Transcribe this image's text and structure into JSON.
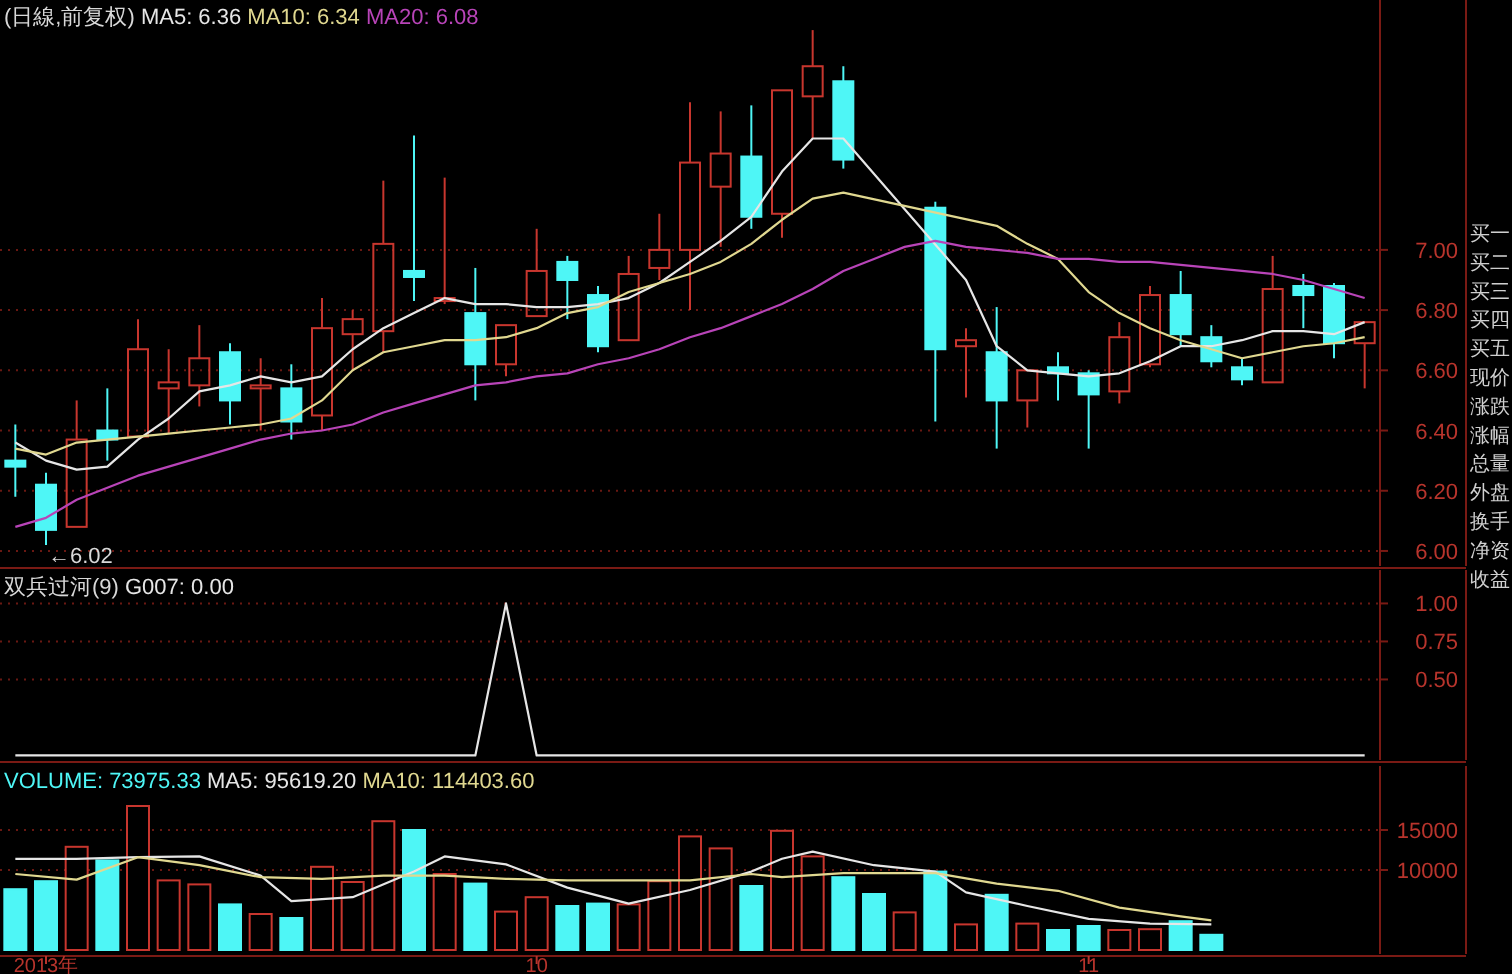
{
  "chart_data": [
    {
      "type": "candlestick",
      "title": "(日線,前复权)",
      "legend": "top left",
      "ylim": [
        5.95,
        7.83
      ],
      "grid": "y",
      "tick_labels": "y",
      "yticks": [
        {
          "value": 6.0,
          "label": "6.00"
        },
        {
          "value": 6.2,
          "label": "6.20"
        },
        {
          "value": 6.4,
          "label": "6.40"
        },
        {
          "value": 6.6,
          "label": "6.60"
        },
        {
          "value": 6.8,
          "label": "6.80"
        },
        {
          "value": 7.0,
          "label": "7.00"
        }
      ],
      "categories": [
        null,
        null,
        null,
        null,
        null,
        null,
        null,
        null,
        null,
        null,
        null,
        null,
        null,
        null,
        null,
        null,
        null,
        null,
        null,
        null,
        null,
        null,
        null,
        null,
        null,
        null,
        null,
        null,
        null,
        null,
        null,
        null,
        null,
        null,
        null,
        null,
        null,
        null,
        null,
        null,
        null,
        null,
        null,
        null,
        null
      ],
      "ohlc": [
        [
          6.3,
          6.42,
          6.18,
          6.28
        ],
        [
          6.22,
          6.26,
          6.02,
          6.07
        ],
        [
          6.08,
          6.5,
          6.08,
          6.37
        ],
        [
          6.4,
          6.54,
          6.3,
          6.37
        ],
        [
          6.38,
          6.77,
          6.38,
          6.67
        ],
        [
          6.54,
          6.67,
          6.39,
          6.56
        ],
        [
          6.55,
          6.75,
          6.48,
          6.64
        ],
        [
          6.66,
          6.69,
          6.42,
          6.5
        ],
        [
          6.54,
          6.64,
          6.4,
          6.55
        ],
        [
          6.54,
          6.62,
          6.37,
          6.43
        ],
        [
          6.45,
          6.84,
          6.4,
          6.74
        ],
        [
          6.72,
          6.8,
          6.6,
          6.77
        ],
        [
          6.73,
          7.23,
          6.66,
          7.02
        ],
        [
          6.93,
          7.38,
          6.83,
          6.91
        ],
        [
          6.83,
          7.24,
          6.82,
          6.84
        ],
        [
          6.79,
          6.94,
          6.5,
          6.62
        ],
        [
          6.62,
          6.75,
          6.58,
          6.75
        ],
        [
          6.78,
          7.07,
          6.78,
          6.93
        ],
        [
          6.96,
          6.98,
          6.77,
          6.9
        ],
        [
          6.85,
          6.88,
          6.66,
          6.68
        ],
        [
          6.7,
          6.98,
          6.7,
          6.92
        ],
        [
          6.94,
          7.12,
          6.9,
          7.0
        ],
        [
          7.0,
          7.49,
          6.8,
          7.29
        ],
        [
          7.21,
          7.46,
          7.01,
          7.32
        ],
        [
          7.31,
          7.48,
          7.07,
          7.11
        ],
        [
          7.12,
          7.53,
          7.04,
          7.53
        ],
        [
          7.51,
          7.73,
          7.37,
          7.61
        ],
        [
          7.56,
          7.61,
          7.27,
          7.3
        ],
        null,
        null,
        [
          7.14,
          7.16,
          6.43,
          6.67
        ],
        [
          6.68,
          6.74,
          6.51,
          6.7
        ],
        [
          6.66,
          6.81,
          6.34,
          6.5
        ],
        [
          6.5,
          6.6,
          6.41,
          6.6
        ],
        [
          6.61,
          6.66,
          6.5,
          6.59
        ],
        [
          6.59,
          6.6,
          6.34,
          6.52
        ],
        [
          6.53,
          6.76,
          6.49,
          6.71
        ],
        [
          6.62,
          6.88,
          6.61,
          6.85
        ],
        [
          6.85,
          6.93,
          6.68,
          6.72
        ],
        [
          6.71,
          6.75,
          6.61,
          6.63
        ],
        [
          6.61,
          6.64,
          6.55,
          6.57
        ],
        [
          6.56,
          6.98,
          6.56,
          6.87
        ],
        [
          6.88,
          6.92,
          6.74,
          6.85
        ],
        [
          6.88,
          6.89,
          6.64,
          6.69
        ],
        [
          6.69,
          6.76,
          6.54,
          6.76
        ]
      ],
      "colors": [
        "#4ef6f6",
        "#4ef6f6",
        "#c8362e",
        "#4ef6f6",
        "#c8362e",
        "#c8362e",
        "#c8362e",
        "#4ef6f6",
        "#c8362e",
        "#4ef6f6",
        "#c8362e",
        "#c8362e",
        "#c8362e",
        "#4ef6f6",
        "#c8362e",
        "#4ef6f6",
        "#c8362e",
        "#c8362e",
        "#4ef6f6",
        "#4ef6f6",
        "#c8362e",
        "#c8362e",
        "#c8362e",
        "#c8362e",
        "#4ef6f6",
        "#c8362e",
        "#c8362e",
        "#4ef6f6",
        null,
        null,
        "#4ef6f6",
        "#c8362e",
        "#4ef6f6",
        "#c8362e",
        "#4ef6f6",
        "#4ef6f6",
        "#c8362e",
        "#c8362e",
        "#4ef6f6",
        "#4ef6f6",
        "#4ef6f6",
        "#c8362e",
        "#4ef6f6",
        "#4ef6f6",
        "#c8362e"
      ],
      "series": [
        {
          "type": "line",
          "name": "MA5: 6.36",
          "color": "#e6e6e6",
          "values": [
            6.36,
            6.3,
            6.27,
            6.28,
            6.37,
            6.44,
            6.53,
            6.55,
            6.58,
            6.56,
            6.58,
            6.67,
            6.74,
            6.79,
            6.84,
            6.82,
            6.82,
            6.81,
            6.81,
            6.82,
            6.84,
            6.89,
            6.96,
            7.03,
            7.11,
            7.26,
            7.37,
            7.37,
            null,
            null,
            null,
            6.9,
            6.68,
            6.6,
            6.59,
            6.58,
            6.59,
            6.63,
            6.68,
            6.68,
            6.7,
            6.73,
            6.73,
            6.72,
            6.76
          ]
        },
        {
          "type": "line",
          "name": "MA10: 6.34",
          "color": "#e0d890",
          "values": [
            6.34,
            6.32,
            6.36,
            6.37,
            6.38,
            6.39,
            6.4,
            6.41,
            6.42,
            6.44,
            6.5,
            6.6,
            6.66,
            6.68,
            6.7,
            6.7,
            6.71,
            6.74,
            6.79,
            6.81,
            6.86,
            6.89,
            6.92,
            6.96,
            7.02,
            7.1,
            7.17,
            7.19,
            null,
            null,
            null,
            null,
            7.08,
            7.02,
            6.97,
            6.86,
            6.79,
            6.74,
            6.7,
            6.67,
            6.64,
            6.66,
            6.68,
            6.69,
            6.71
          ]
        },
        {
          "type": "line",
          "name": "MA20: 6.08",
          "color": "#b844b8",
          "values": [
            6.08,
            6.11,
            6.17,
            6.21,
            6.25,
            6.28,
            6.31,
            6.34,
            6.37,
            6.39,
            6.4,
            6.42,
            6.46,
            6.49,
            6.52,
            6.55,
            6.56,
            6.58,
            6.59,
            6.62,
            6.64,
            6.67,
            6.71,
            6.74,
            6.78,
            6.82,
            6.87,
            6.93,
            6.97,
            7.01,
            7.03,
            7.01,
            7.0,
            6.99,
            6.97,
            6.97,
            6.96,
            6.96,
            6.95,
            6.94,
            6.93,
            6.92,
            6.9,
            6.87,
            6.84
          ]
        }
      ],
      "annotations": [
        "←6.02",
        "买一",
        "买二",
        "买三",
        "买四",
        "买五",
        "现价",
        "涨跌",
        "涨幅",
        "总量",
        "外盘",
        "换手",
        "净资",
        "收益"
      ]
    },
    {
      "type": "line",
      "title": "双兵过河(9)",
      "legend": "top left",
      "ylim": [
        -0.03,
        1.22
      ],
      "grid": "y",
      "tick_labels": "y",
      "yticks": [
        {
          "value": 0.5,
          "label": "0.50"
        },
        {
          "value": 0.75,
          "label": "0.75"
        },
        {
          "value": 1.0,
          "label": "1.00"
        }
      ],
      "categories": [
        null,
        null,
        null,
        null,
        null,
        null,
        null,
        null,
        null,
        null,
        null,
        null,
        null,
        null,
        null,
        null,
        null,
        null,
        null,
        null,
        null,
        null,
        null,
        null,
        null,
        null,
        null,
        null,
        null,
        null,
        null,
        null,
        null,
        null,
        null,
        null,
        null,
        null,
        null,
        null,
        null,
        null,
        null,
        null,
        null
      ],
      "series": [
        {
          "name": "G007: 0.00",
          "color": "#e6e6e6",
          "values": [
            0,
            0,
            0,
            0,
            0,
            0,
            0,
            0,
            0,
            0,
            0,
            0,
            0,
            0,
            0,
            0,
            1,
            0,
            0,
            0,
            0,
            0,
            0,
            0,
            0,
            0,
            0,
            0,
            0,
            0,
            0,
            0,
            0,
            0,
            0,
            0,
            0,
            0,
            0,
            0,
            0,
            0,
            0,
            0,
            0
          ]
        }
      ]
    },
    {
      "type": "bar",
      "legend": "top left",
      "ylim": [
        -500,
        23000
      ],
      "grid": "y",
      "yticks": [
        {
          "value": 10000,
          "label": "10000"
        },
        {
          "value": 15000,
          "label": "15000"
        }
      ],
      "categories": [
        null,
        "2013年",
        null,
        null,
        null,
        null,
        null,
        null,
        null,
        null,
        null,
        null,
        null,
        null,
        null,
        null,
        null,
        "10",
        null,
        null,
        null,
        null,
        null,
        null,
        null,
        null,
        null,
        null,
        null,
        null,
        null,
        null,
        null,
        null,
        null,
        "11",
        null,
        null,
        null,
        null,
        null,
        null,
        null,
        null,
        null
      ],
      "series": [
        {
          "type": "bar",
          "name": "VOLUME: 73975.33",
          "values": [
            7600,
            8600,
            12900,
            11200,
            18000,
            8700,
            8200,
            5700,
            4500,
            4000,
            10400,
            8500,
            16100,
            15000,
            9500,
            8300,
            4800,
            6600,
            5500,
            5800,
            5700,
            8600,
            14200,
            12700,
            8000,
            14900,
            11700,
            9100,
            7000,
            4700,
            9800,
            3200,
            6900,
            3300,
            2500,
            3000,
            2500,
            2600,
            3600,
            1900,
            null,
            null,
            null,
            null,
            null
          ],
          "colors": [
            "#4ef6f6",
            "#4ef6f6",
            "#c8362e",
            "#4ef6f6",
            "#c8362e",
            "#c8362e",
            "#c8362e",
            "#4ef6f6",
            "#c8362e",
            "#4ef6f6",
            "#c8362e",
            "#c8362e",
            "#c8362e",
            "#4ef6f6",
            "#c8362e",
            "#4ef6f6",
            "#c8362e",
            "#c8362e",
            "#4ef6f6",
            "#4ef6f6",
            "#c8362e",
            "#c8362e",
            "#c8362e",
            "#c8362e",
            "#4ef6f6",
            "#c8362e",
            "#c8362e",
            "#4ef6f6",
            "#4ef6f6",
            "#c8362e",
            "#4ef6f6",
            "#c8362e",
            "#4ef6f6",
            "#c8362e",
            "#4ef6f6",
            "#4ef6f6",
            "#c8362e",
            "#c8362e",
            "#4ef6f6",
            "#4ef6f6",
            null,
            null,
            null,
            null,
            null
          ]
        },
        {
          "type": "line",
          "name": "MA5: 95619.20",
          "color": "#e6e6e6",
          "values": [
            11400,
            null,
            11400,
            null,
            11600,
            null,
            11700,
            null,
            9300,
            6100,
            null,
            6600,
            null,
            9800,
            11700,
            null,
            10700,
            null,
            7800,
            null,
            5800,
            null,
            7500,
            null,
            9800,
            11400,
            12300,
            null,
            10600,
            null,
            9800,
            7200,
            null,
            5500,
            null,
            3900,
            null,
            3300,
            null,
            3200,
            null,
            null,
            null,
            null,
            null
          ]
        },
        {
          "type": "line",
          "name": "MA10: 114403.60",
          "color": "#e0d890",
          "values": [
            9500,
            null,
            8800,
            null,
            11600,
            null,
            10600,
            null,
            9100,
            null,
            8900,
            null,
            9300,
            null,
            9300,
            null,
            8900,
            null,
            8700,
            null,
            8700,
            null,
            8700,
            null,
            9500,
            9100,
            null,
            9600,
            null,
            null,
            9600,
            null,
            8300,
            null,
            7400,
            null,
            5300,
            null,
            4200,
            3700,
            null,
            null,
            null,
            null,
            null
          ]
        }
      ]
    }
  ]
}
